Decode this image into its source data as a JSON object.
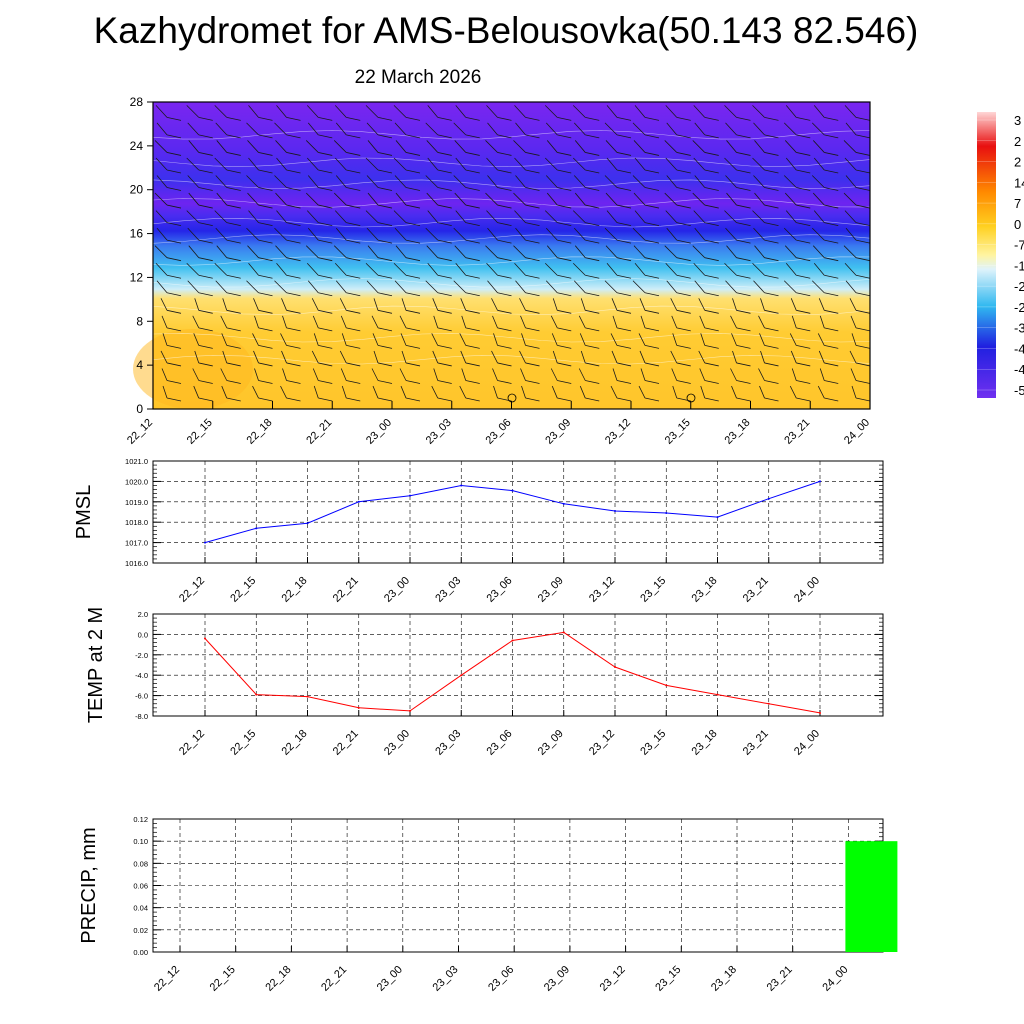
{
  "header": {
    "title": "Kazhydromet for AMS-Belousovka(50.143 82.546)",
    "date": "22 March 2026"
  },
  "chart_data": [
    {
      "type": "heatmap",
      "name": "vertical-section",
      "title": "",
      "y_ticks": [
        "0",
        "4",
        "8",
        "12",
        "16",
        "20",
        "24",
        "28"
      ],
      "ylim": [
        0,
        28
      ],
      "x_ticks": [
        "22_12",
        "22_15",
        "22_18",
        "22_21",
        "23_00",
        "23_03",
        "23_06",
        "23_09",
        "23_12",
        "23_15",
        "23_18",
        "23_21",
        "24_00"
      ],
      "colorbar_labels": [
        "3",
        "2",
        "2",
        "14",
        "7",
        "0",
        "-7",
        "-1",
        "-2",
        "-2",
        "-3",
        "-4",
        "-4",
        "-5"
      ],
      "colors": {
        "warm": "#ffc62a",
        "cold": "#6a20f0",
        "jet": "#1e18e8",
        "cyan": "#4ac6ee"
      }
    },
    {
      "type": "line",
      "name": "pmsl",
      "ylabel": "PMSL",
      "categories": [
        "22_12",
        "22_15",
        "22_18",
        "22_21",
        "23_00",
        "23_03",
        "23_06",
        "23_09",
        "23_12",
        "23_15",
        "23_18",
        "23_21",
        "24_00"
      ],
      "values": [
        1017.0,
        1017.7,
        1017.95,
        1019.0,
        1019.3,
        1019.8,
        1019.55,
        1018.9,
        1018.55,
        1018.45,
        1018.25,
        1019.15,
        1020.0
      ],
      "ylim": [
        1016.0,
        1021.0
      ],
      "y_ticks": [
        "1016.0",
        "1017.0",
        "1018.0",
        "1019.0",
        "1020.0",
        "1021.0"
      ],
      "color": "#0000ff"
    },
    {
      "type": "line",
      "name": "temp-2m",
      "ylabel": "TEMP at 2 M",
      "categories": [
        "22_12",
        "22_15",
        "22_18",
        "22_21",
        "23_00",
        "23_03",
        "23_06",
        "23_09",
        "23_12",
        "23_15",
        "23_18",
        "23_21",
        "24_00"
      ],
      "values": [
        -0.4,
        -5.9,
        -6.1,
        -7.2,
        -7.5,
        -4.0,
        -0.6,
        0.2,
        -3.2,
        -5.0,
        -5.9,
        -6.8,
        -7.7
      ],
      "ylim": [
        -8.0,
        2.0
      ],
      "y_ticks": [
        "-8.0",
        "-6.0",
        "-4.0",
        "-2.0",
        "0.0",
        "2.0"
      ],
      "color": "#ff0000"
    },
    {
      "type": "bar",
      "name": "precip",
      "ylabel": "PRECIP, mm",
      "categories": [
        "22_12",
        "22_15",
        "22_18",
        "22_21",
        "23_00",
        "23_03",
        "23_06",
        "23_09",
        "23_12",
        "23_15",
        "23_18",
        "23_21",
        "24_00"
      ],
      "values": [
        0,
        0,
        0,
        0,
        0,
        0,
        0,
        0,
        0,
        0,
        0,
        0,
        0.1
      ],
      "ylim": [
        0,
        0.12
      ],
      "y_ticks": [
        "0.00",
        "0.02",
        "0.04",
        "0.06",
        "0.08",
        "0.10",
        "0.12"
      ],
      "color": "#00ff00"
    }
  ]
}
